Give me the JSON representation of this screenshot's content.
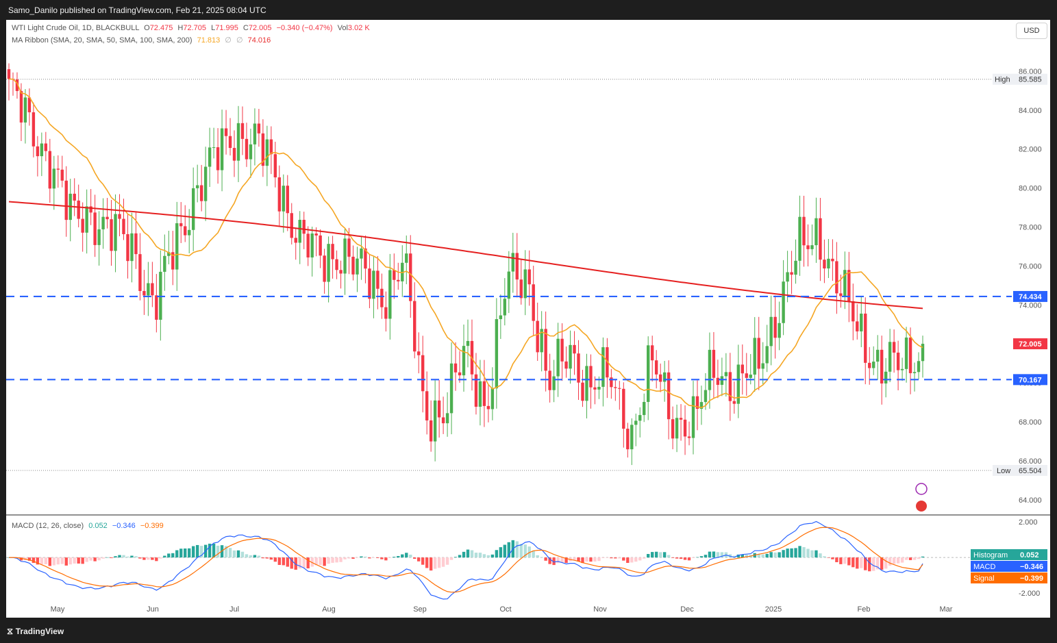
{
  "header": {
    "published": "Samo_Danilo published on TradingView.com, Feb 21, 2025 08:04 UTC"
  },
  "legend": {
    "symbol": "WTI Light Crude Oil, 1D, BLACKBULL",
    "o_label": "O",
    "o_value": "72.475",
    "h_label": "H",
    "h_value": "72.705",
    "l_label": "L",
    "l_value": "71.995",
    "c_label": "C",
    "c_value": "72.005",
    "change": "−0.340 (−0.47%)",
    "vol_label": "Vol",
    "vol_value": "3.02 K",
    "ma_label": "MA Ribbon (SMA, 20, SMA, 50, SMA, 100, SMA, 200)",
    "ma20_value": "71.813",
    "ma_sep1": "∅",
    "ma_sep2": "∅",
    "ma200_value": "74.016",
    "macd_label": "MACD (12, 26, close)",
    "macd_hist": "0.052",
    "macd_macd": "−0.346",
    "macd_signal": "−0.399"
  },
  "currency_button": "USD",
  "price_axis": {
    "ticks": [
      "86.000",
      "84.000",
      "82.000",
      "80.000",
      "78.000",
      "76.000",
      "74.000",
      "72.000",
      "70.000",
      "68.000",
      "66.000",
      "64.000"
    ],
    "high_label": "High",
    "high_value": "85.585",
    "low_label": "Low",
    "low_value": "65.504",
    "level_top": "74.434",
    "last_price": "72.005",
    "level_bottom": "70.167"
  },
  "macd_axis": {
    "ticks": [
      "2.000",
      "-2.000"
    ],
    "histogram_label": "Histogram",
    "histogram_value": "0.052",
    "macd_label": "MACD",
    "macd_value": "−0.346",
    "signal_label": "Signal",
    "signal_value": "−0.399"
  },
  "time_axis": [
    "May",
    "Jun",
    "Jul",
    "Aug",
    "Sep",
    "Oct",
    "Nov",
    "Dec",
    "2025",
    "Feb",
    "Mar"
  ],
  "footer": {
    "brand": "TradingView"
  },
  "colors": {
    "up": "#26a69a",
    "up_candle": "#4caf50",
    "down": "#f23645",
    "ma20": "#f5a623",
    "ma200": "#e52020",
    "level": "#2962ff",
    "macd": "#2962ff",
    "signal": "#ff6d00"
  },
  "chart_data": {
    "type": "candlestick",
    "title": "WTI Light Crude Oil, 1D, BLACKBULL",
    "ylim": [
      63.5,
      86.7
    ],
    "horizontal_levels": [
      74.434,
      70.167
    ],
    "high": 85.585,
    "low": 65.504,
    "last": 72.005,
    "close_series": [
      {
        "date": "2024-04-15",
        "value": 85.2
      },
      {
        "date": "2024-04-22",
        "value": 83.0
      },
      {
        "date": "2024-04-29",
        "value": 81.6
      },
      {
        "date": "2024-05-06",
        "value": 78.3
      },
      {
        "date": "2024-05-13",
        "value": 78.8
      },
      {
        "date": "2024-05-20",
        "value": 77.6
      },
      {
        "date": "2024-05-27",
        "value": 76.9
      },
      {
        "date": "2024-06-03",
        "value": 74.0
      },
      {
        "date": "2024-06-10",
        "value": 76.9
      },
      {
        "date": "2024-06-17",
        "value": 80.1
      },
      {
        "date": "2024-06-24",
        "value": 81.5
      },
      {
        "date": "2024-07-01",
        "value": 83.0
      },
      {
        "date": "2024-07-08",
        "value": 82.2
      },
      {
        "date": "2024-07-15",
        "value": 80.2
      },
      {
        "date": "2024-07-22",
        "value": 77.5
      },
      {
        "date": "2024-07-29",
        "value": 76.2
      },
      {
        "date": "2024-08-05",
        "value": 76.9
      },
      {
        "date": "2024-08-12",
        "value": 75.5
      },
      {
        "date": "2024-08-19",
        "value": 74.6
      },
      {
        "date": "2024-08-26",
        "value": 76.2
      },
      {
        "date": "2024-09-02",
        "value": 68.6
      },
      {
        "date": "2024-09-09",
        "value": 68.6
      },
      {
        "date": "2024-09-16",
        "value": 71.5
      },
      {
        "date": "2024-09-23",
        "value": 68.9
      },
      {
        "date": "2024-09-30",
        "value": 75.2
      },
      {
        "date": "2024-10-07",
        "value": 75.6
      },
      {
        "date": "2024-10-14",
        "value": 69.6
      },
      {
        "date": "2024-10-21",
        "value": 71.8
      },
      {
        "date": "2024-10-28",
        "value": 69.8
      },
      {
        "date": "2024-11-04",
        "value": 70.1
      },
      {
        "date": "2024-11-11",
        "value": 67.5
      },
      {
        "date": "2024-11-18",
        "value": 70.9
      },
      {
        "date": "2024-11-25",
        "value": 68.3
      },
      {
        "date": "2024-12-02",
        "value": 67.8
      },
      {
        "date": "2024-12-09",
        "value": 71.0
      },
      {
        "date": "2024-12-16",
        "value": 69.8
      },
      {
        "date": "2024-12-23",
        "value": 70.6
      },
      {
        "date": "2024-12-30",
        "value": 73.9
      },
      {
        "date": "2025-01-06",
        "value": 76.6
      },
      {
        "date": "2025-01-13",
        "value": 77.8
      },
      {
        "date": "2025-01-20",
        "value": 74.7
      },
      {
        "date": "2025-01-27",
        "value": 72.5
      },
      {
        "date": "2025-02-03",
        "value": 70.9
      },
      {
        "date": "2025-02-10",
        "value": 70.7
      },
      {
        "date": "2025-02-17",
        "value": 72.0
      }
    ],
    "series": [
      {
        "name": "MA 20",
        "last": 71.813
      },
      {
        "name": "MA 200",
        "last": 74.016
      }
    ],
    "macd": {
      "histogram": 0.052,
      "macd": -0.346,
      "signal": -0.399,
      "ylim": [
        -2.5,
        2.2
      ]
    },
    "xlabels": [
      "May",
      "Jun",
      "Jul",
      "Aug",
      "Sep",
      "Oct",
      "Nov",
      "Dec",
      "2025",
      "Feb",
      "Mar"
    ]
  }
}
